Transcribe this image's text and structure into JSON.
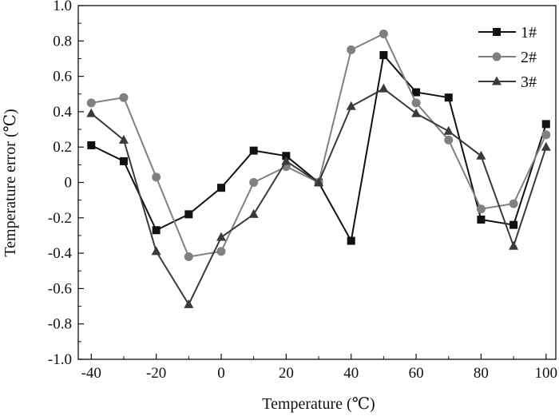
{
  "chart_data": {
    "type": "line",
    "xlabel": "Temperature (℃)",
    "ylabel": "Temperature error (℃)",
    "xlim": [
      -44,
      103
    ],
    "ylim": [
      -1.0,
      1.0
    ],
    "x_ticks": [
      -40,
      -20,
      0,
      20,
      40,
      60,
      80,
      100
    ],
    "x_tick_labels": [
      "-40",
      "-20",
      "0",
      "20",
      "40",
      "60",
      "80",
      "100"
    ],
    "y_ticks": [
      1.0,
      0.8,
      0.6,
      0.4,
      0.2,
      0,
      -0.2,
      -0.4,
      -0.6,
      -0.8,
      -1.0
    ],
    "y_tick_labels": [
      "1.0",
      "0.8",
      "0.6",
      "0.4",
      "0.2",
      "0",
      "-0.2",
      "-0.4",
      "-0.6",
      "-0.8",
      "-1.0"
    ],
    "grid": false,
    "legend_position": "top-right",
    "x": [
      -40,
      -30,
      -20,
      -10,
      0,
      10,
      20,
      30,
      40,
      50,
      60,
      70,
      80,
      90,
      100
    ],
    "series": [
      {
        "name": "1#",
        "marker": "square",
        "color": "#111111",
        "values": [
          0.21,
          0.12,
          -0.27,
          -0.18,
          -0.03,
          0.18,
          0.15,
          0.0,
          -0.33,
          0.72,
          0.51,
          0.48,
          -0.21,
          -0.24,
          0.33
        ]
      },
      {
        "name": "2#",
        "marker": "circle",
        "color": "#808080",
        "values": [
          0.45,
          0.48,
          0.03,
          -0.42,
          -0.39,
          0.0,
          0.09,
          0.0,
          0.75,
          0.84,
          0.45,
          0.24,
          -0.15,
          -0.12,
          0.27
        ]
      },
      {
        "name": "3#",
        "marker": "triangle",
        "color": "#3a3a3a",
        "values": [
          0.39,
          0.24,
          -0.39,
          -0.69,
          -0.31,
          -0.18,
          0.12,
          0.0,
          0.43,
          0.53,
          0.39,
          0.29,
          0.15,
          -0.36,
          0.2
        ]
      }
    ]
  }
}
